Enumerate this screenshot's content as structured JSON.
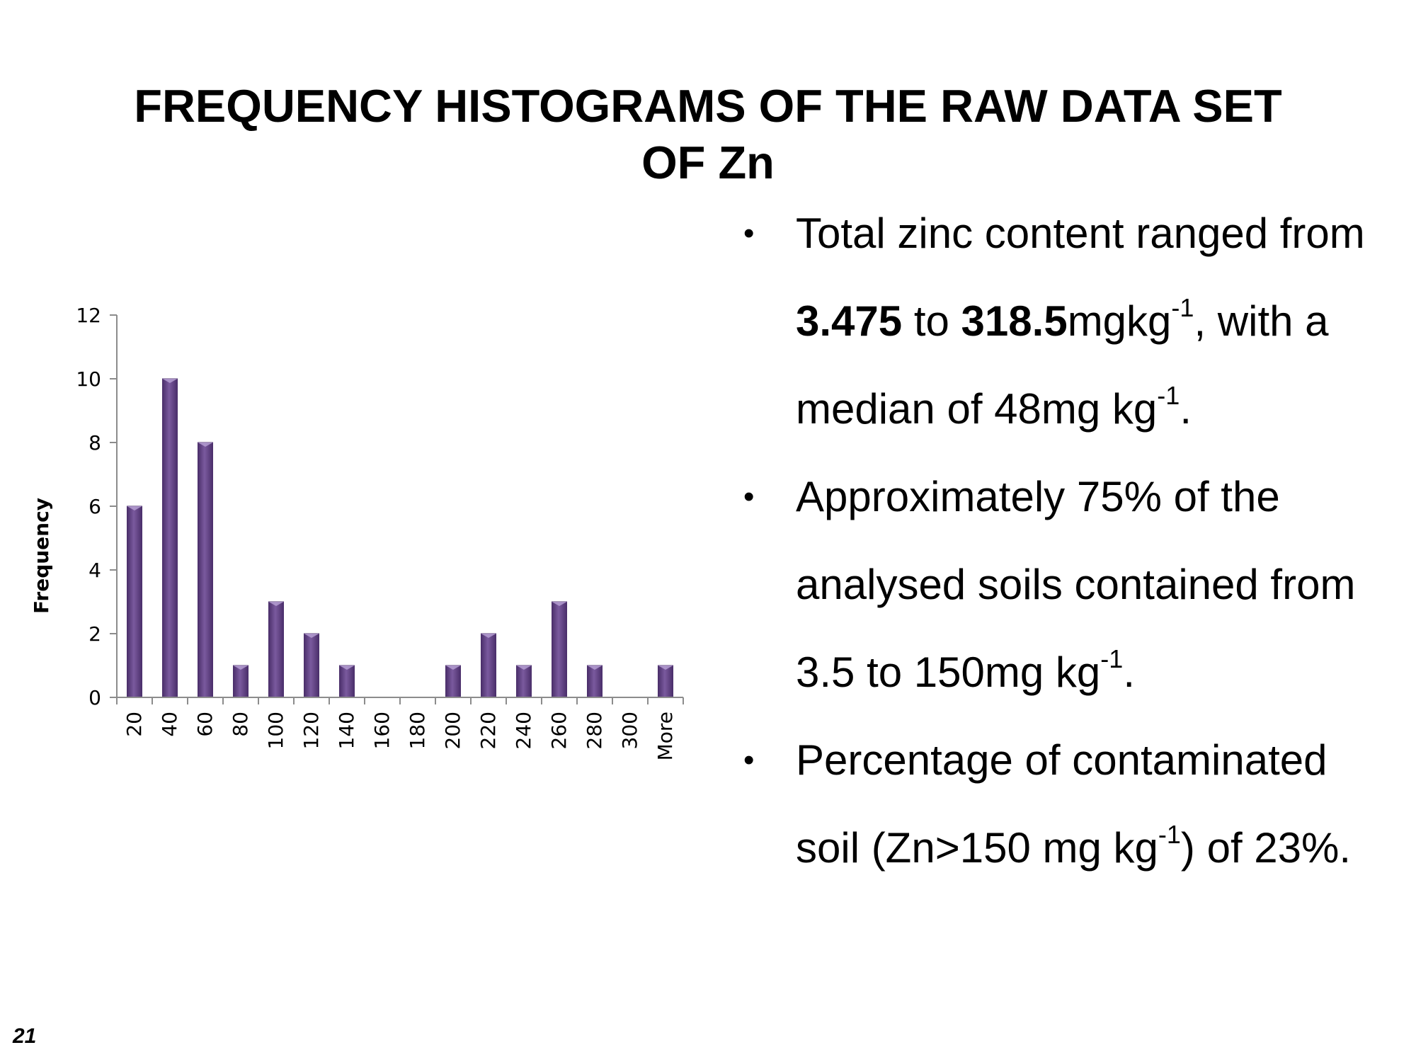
{
  "title": {
    "line1": "FREQUENCY HISTOGRAMS OF THE RAW DATA SET",
    "line2": "OF Zn"
  },
  "bullets": [
    {
      "parts": [
        {
          "t": "Total zinc content ranged from "
        },
        {
          "t": "3.475",
          "b": true
        },
        {
          "t": " to "
        },
        {
          "t": "318.5",
          "b": true
        },
        {
          "t": "mgkg"
        },
        {
          "t": "-1",
          "sup": true
        },
        {
          "t": ", with a median of 48mg kg"
        },
        {
          "t": "-1",
          "sup": true
        },
        {
          "t": "."
        }
      ]
    },
    {
      "parts": [
        {
          "t": "Approximately 75% of the analysed soils contained from 3.5 to 150mg kg"
        },
        {
          "t": "-1",
          "sup": true
        },
        {
          "t": "."
        }
      ]
    },
    {
      "parts": [
        {
          "t": "Percentage of contaminated soil (Zn>150 mg kg"
        },
        {
          "t": "-1",
          "sup": true
        },
        {
          "t": ") of 23%."
        }
      ]
    }
  ],
  "page_number": "21",
  "colors": {
    "bar_fill": "#7a5a9e",
    "bar_edge": "#4b2f6b",
    "axis": "#8c8c8c"
  },
  "chart_data": {
    "type": "bar",
    "categories": [
      "20",
      "40",
      "60",
      "80",
      "100",
      "120",
      "140",
      "160",
      "180",
      "200",
      "220",
      "240",
      "260",
      "280",
      "300",
      "More"
    ],
    "values": [
      6,
      10,
      8,
      1,
      3,
      2,
      1,
      0,
      0,
      1,
      2,
      1,
      3,
      1,
      0,
      1
    ],
    "ylabel": "Frequency",
    "xlabel": "",
    "ylim": [
      0,
      12
    ],
    "yticks": [
      "0",
      "2",
      "4",
      "6",
      "8",
      "10",
      "12"
    ],
    "grid": false,
    "legend": "none"
  }
}
